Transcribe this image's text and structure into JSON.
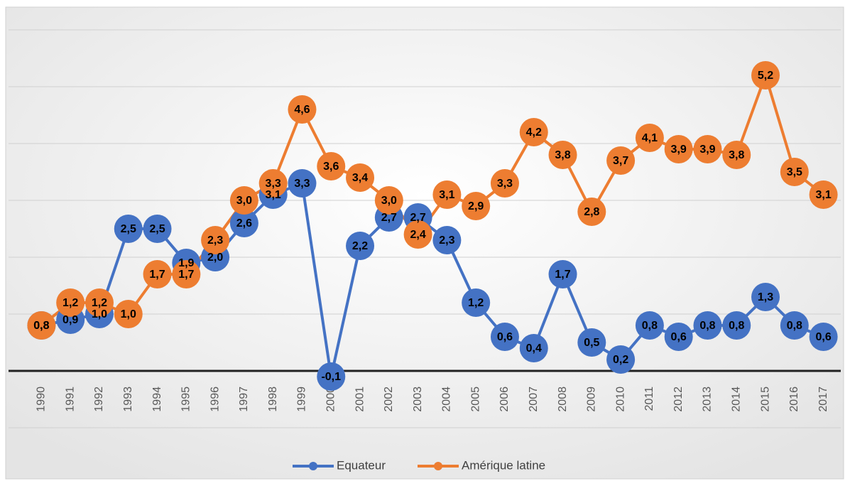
{
  "chart_data": {
    "type": "line",
    "categories": [
      "1990",
      "1991",
      "1992",
      "1993",
      "1994",
      "1995",
      "1996",
      "1997",
      "1998",
      "1999",
      "2000",
      "2001",
      "2002",
      "2003",
      "2004",
      "2005",
      "2006",
      "2007",
      "2008",
      "2009",
      "2010",
      "2011",
      "2012",
      "2013",
      "2014",
      "2015",
      "2016",
      "2017"
    ],
    "series": [
      {
        "name": "Equateur",
        "color": "#4472c4",
        "values": [
          0.8,
          0.9,
          1.0,
          2.5,
          2.5,
          1.9,
          2.0,
          2.6,
          3.1,
          3.3,
          -0.1,
          2.2,
          2.7,
          2.7,
          2.3,
          1.2,
          0.6,
          0.4,
          1.7,
          0.5,
          0.2,
          0.8,
          0.6,
          0.8,
          0.8,
          1.3,
          0.8,
          0.6
        ],
        "value_labels": [
          "0,8",
          "0,9",
          "1,0",
          "2,5",
          "2,5",
          "1,9",
          "2,0",
          "2,6",
          "3,1",
          "3,3",
          "-0,1",
          "2,2",
          "2,7",
          "2,7",
          "2,3",
          "1,2",
          "0,6",
          "0,4",
          "1,7",
          "0,5",
          "0,2",
          "0,8",
          "0,6",
          "0,8",
          "0,8",
          "1,3",
          "0,8",
          "0,6"
        ]
      },
      {
        "name": "Amérique latine",
        "color": "#ed7d31",
        "values": [
          0.8,
          1.2,
          1.2,
          1.0,
          1.7,
          1.7,
          2.3,
          3.0,
          3.3,
          4.6,
          3.6,
          3.4,
          3.0,
          2.4,
          3.1,
          2.9,
          3.3,
          4.2,
          3.8,
          2.8,
          3.7,
          4.1,
          3.9,
          3.9,
          3.8,
          5.2,
          3.5,
          3.1
        ],
        "value_labels": [
          "0,8",
          "1,2",
          "1,2",
          "1,0",
          "1,7",
          "1,7",
          "2,3",
          "3,0",
          "3,3",
          "4,6",
          "3,6",
          "3,4",
          "3,0",
          "2,4",
          "3,1",
          "2,9",
          "3,3",
          "4,2",
          "3,8",
          "2,8",
          "3,7",
          "4,1",
          "3,9",
          "3,9",
          "3,8",
          "5,2",
          "3,5",
          "3,1"
        ]
      }
    ],
    "ylim": [
      -1,
      6
    ],
    "yticks": [
      -1,
      0,
      1,
      2,
      3,
      4,
      5,
      6
    ],
    "grid": true,
    "legend": "bottom"
  }
}
